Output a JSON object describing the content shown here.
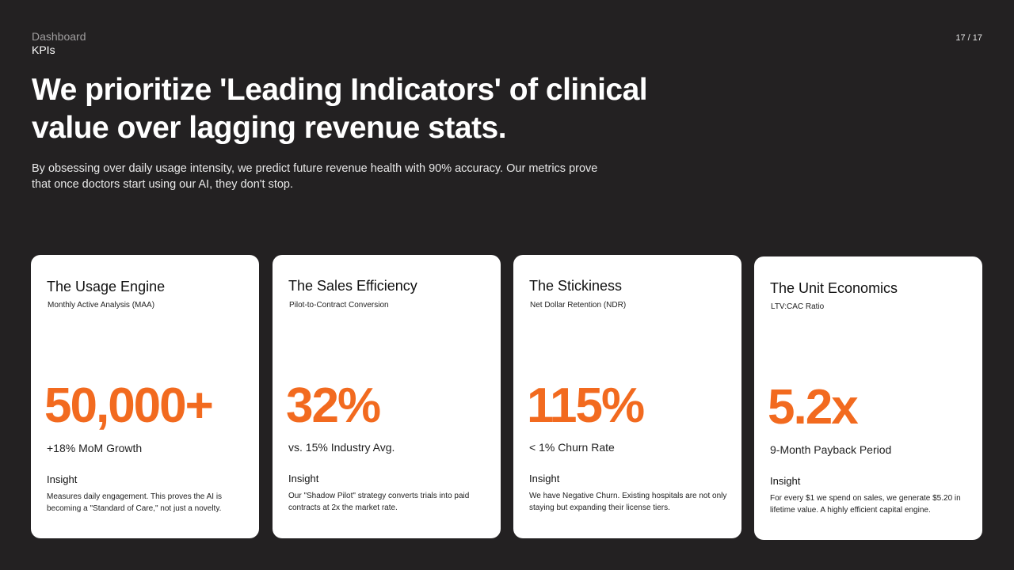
{
  "header": {
    "breadcrumb_parent": "Dashboard",
    "breadcrumb_current": "KPIs",
    "page_indicator": "17 / 17"
  },
  "headline": "We prioritize 'Leading Indicators' of clinical value over lagging revenue stats.",
  "subhead": "By obsessing over daily usage intensity, we predict future revenue health with 90% accuracy. Our metrics prove that once doctors start using our AI, they don't stop.",
  "accent_color": "#f26a1f",
  "cards": [
    {
      "title": "The Usage Engine",
      "subtitle": "Monthly Active Analysis (MAA)",
      "metric": "50,000+",
      "metric_sub": "+18% MoM Growth",
      "insight_label": "Insight",
      "insight_text": "Measures daily engagement. This proves the AI is becoming a \"Standard of Care,\" not just a novelty."
    },
    {
      "title": "The Sales Efficiency",
      "subtitle": "Pilot-to-Contract Conversion",
      "metric": "32%",
      "metric_sub": "vs. 15% Industry Avg.",
      "insight_label": "Insight",
      "insight_text": "Our \"Shadow Pilot\" strategy converts trials into paid contracts at 2x the market rate."
    },
    {
      "title": "The Stickiness",
      "subtitle": "Net Dollar Retention (NDR)",
      "metric": "115%",
      "metric_sub": "< 1% Churn Rate",
      "insight_label": "Insight",
      "insight_text": "We have Negative Churn. Existing hospitals are not only staying but expanding their license tiers."
    },
    {
      "title": "The Unit Economics",
      "subtitle": "LTV:CAC Ratio",
      "metric": "5.2x",
      "metric_sub": "9-Month Payback Period",
      "insight_label": "Insight",
      "insight_text": "For every $1 we spend on sales, we generate $5.20 in lifetime value. A highly efficient capital engine."
    }
  ]
}
